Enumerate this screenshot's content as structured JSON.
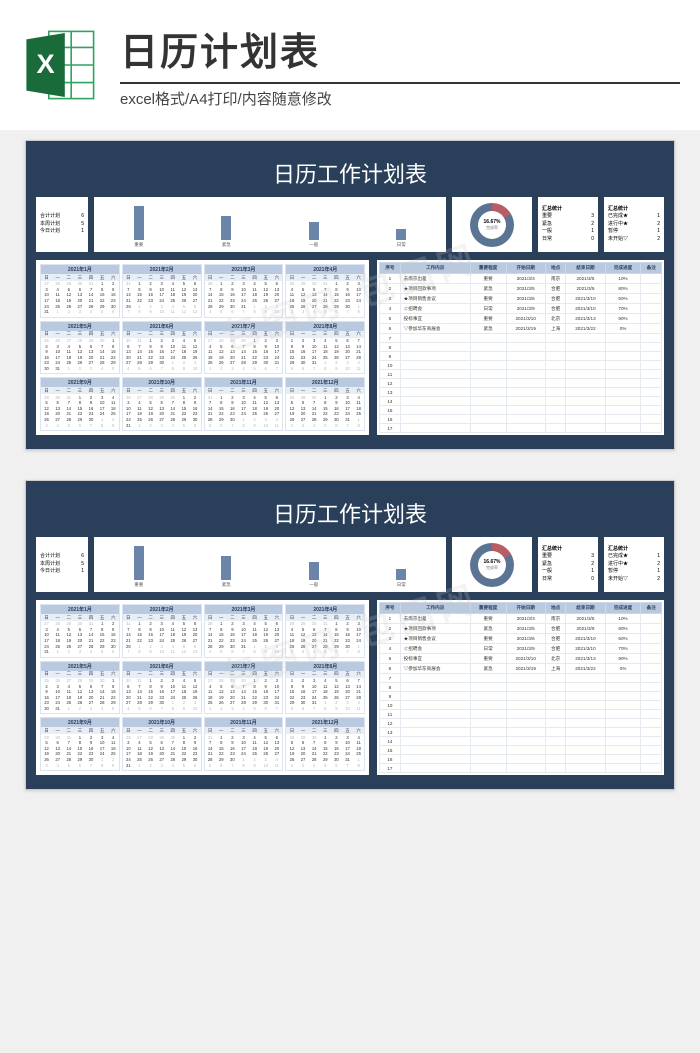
{
  "header": {
    "main_title": "日历计划表",
    "subtitle": "excel格式/A4打印/内容随意修改",
    "excel_label": "X",
    "excel_colors": {
      "dark": "#1a6b3a",
      "light": "#2ea362",
      "white": "#ffffff"
    }
  },
  "sheet": {
    "title": "日历工作计划表",
    "bg_color": "#2a3f5a",
    "summary_card": {
      "rows": [
        {
          "k": "合计计划",
          "v": "6"
        },
        {
          "k": "本周计划",
          "v": "5"
        },
        {
          "k": "今日计划",
          "v": "1"
        }
      ]
    },
    "bar_chart": {
      "bars": [
        {
          "label": "重要",
          "value": 42,
          "color": "#6b85a8"
        },
        {
          "label": "紧急",
          "value": 30,
          "color": "#6b85a8"
        },
        {
          "label": "一般",
          "value": 22,
          "color": "#6b85a8"
        },
        {
          "label": "日常",
          "value": 14,
          "color": "#6b85a8"
        }
      ],
      "max": 50
    },
    "donut": {
      "percent_label": "16.67%",
      "sub_label": "完成率",
      "percent": 16.67,
      "done_color": "#b85c66",
      "rest_color": "#5b7493",
      "inner_color": "#ffffff"
    },
    "stat_card_a": {
      "title": "汇总统计",
      "rows": [
        {
          "k": "重要",
          "v": "3"
        },
        {
          "k": "紧急",
          "v": "2"
        },
        {
          "k": "一般",
          "v": "1"
        },
        {
          "k": "日常",
          "v": "0"
        }
      ]
    },
    "stat_card_b": {
      "title": "汇总统计",
      "rows": [
        {
          "k": "已完成★",
          "v": "1"
        },
        {
          "k": "进行中★",
          "v": "2"
        },
        {
          "k": "暂停",
          "v": "1"
        },
        {
          "k": "未开始▽",
          "v": "2"
        }
      ]
    },
    "calendar": {
      "dow": [
        "日",
        "一",
        "二",
        "三",
        "四",
        "五",
        "六"
      ],
      "dow_alt": [
        "日",
        "一",
        "二",
        "三",
        "四",
        "五"
      ],
      "months": [
        {
          "label": "2021年1月",
          "start": 5,
          "len": 31,
          "prev": 31
        },
        {
          "label": "2021年2月",
          "start": 1,
          "len": 28,
          "prev": 31
        },
        {
          "label": "2021年3月",
          "start": 1,
          "len": 31,
          "prev": 28
        },
        {
          "label": "2021年4月",
          "start": 4,
          "len": 30,
          "prev": 31
        },
        {
          "label": "2021年5月",
          "start": 6,
          "len": 31,
          "prev": 30
        },
        {
          "label": "2021年6月",
          "start": 2,
          "len": 30,
          "prev": 31
        },
        {
          "label": "2021年7月",
          "start": 4,
          "len": 31,
          "prev": 30
        },
        {
          "label": "2021年8月",
          "start": 0,
          "len": 31,
          "prev": 31
        },
        {
          "label": "2021年9月",
          "start": 3,
          "len": 30,
          "prev": 31
        },
        {
          "label": "2021年10月",
          "start": 5,
          "len": 31,
          "prev": 30
        },
        {
          "label": "2021年11月",
          "start": 1,
          "len": 30,
          "prev": 31
        },
        {
          "label": "2021年12月",
          "start": 3,
          "len": 31,
          "prev": 30
        }
      ]
    },
    "tasks": {
      "columns": [
        "序号",
        "工作内容",
        "重要程度",
        "开始日期",
        "地点",
        "结束日期",
        "完成进度",
        "备注"
      ],
      "rows": [
        [
          "1",
          "去南京出差",
          "重要",
          "2021/3/3",
          "南京",
          "2021/3/5",
          "10%",
          ""
        ],
        [
          "2",
          "★项目回款事项",
          "紧急",
          "2021/3/5",
          "合肥",
          "2021/3/9",
          "80%",
          ""
        ],
        [
          "3",
          "★项目销售会议",
          "重要",
          "2021/3/6",
          "合肥",
          "2021/3/10",
          "50%",
          ""
        ],
        [
          "4",
          "☆招聘会",
          "日常",
          "2021/3/9",
          "合肥",
          "2021/3/10",
          "70%",
          ""
        ],
        [
          "5",
          "投标事宜",
          "重要",
          "2021/3/10",
          "北京",
          "2021/3/13",
          "90%",
          ""
        ],
        [
          "6",
          "▽参加华东商展会",
          "紧急",
          "2021/3/19",
          "上海",
          "2021/3/22",
          "0%",
          ""
        ]
      ],
      "blank_rows": 11,
      "blank_start": 7
    }
  },
  "watermark": "包图网 包图网"
}
